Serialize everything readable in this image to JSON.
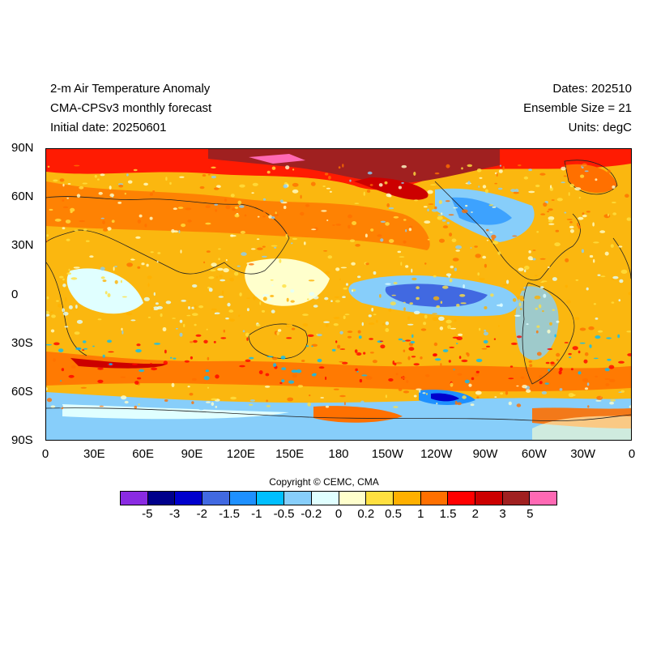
{
  "header": {
    "left": [
      "2-m Air Temperature Anomaly",
      "CMA-CPSv3 monthly forecast",
      "Initial date: 20250601"
    ],
    "right": [
      "Dates: 202510",
      "Ensemble Size = 21",
      "Units: degC"
    ]
  },
  "map": {
    "projection": "equirectangular",
    "field": "2-m air temperature anomaly",
    "lat_range": [
      -90,
      90
    ],
    "lon_range": [
      0,
      360
    ],
    "lat_ticks": [
      "90N",
      "60N",
      "30N",
      "0",
      "30S",
      "60S",
      "90S"
    ],
    "lon_ticks": [
      "0",
      "30E",
      "60E",
      "90E",
      "120E",
      "150E",
      "180",
      "150W",
      "120W",
      "90W",
      "60W",
      "30W",
      "0"
    ],
    "background_anomaly_color": "#fbb70f"
  },
  "copyright": "Copyright © CEMC, CMA",
  "colorbar": {
    "colors": [
      "#8a2be2",
      "#00008b",
      "#0000cd",
      "#4169e1",
      "#1e90ff",
      "#00bfff",
      "#87cefa",
      "#e0ffff",
      "#ffffcc",
      "#ffe040",
      "#ffb000",
      "#ff7000",
      "#ff0000",
      "#cc0000",
      "#a02020",
      "#ff69b4"
    ],
    "labels": [
      "-5",
      "-3",
      "-2",
      "-1.5",
      "-1",
      "-0.5",
      "-0.2",
      "0",
      "0.2",
      "0.5",
      "1",
      "1.5",
      "2",
      "3",
      "5"
    ]
  }
}
